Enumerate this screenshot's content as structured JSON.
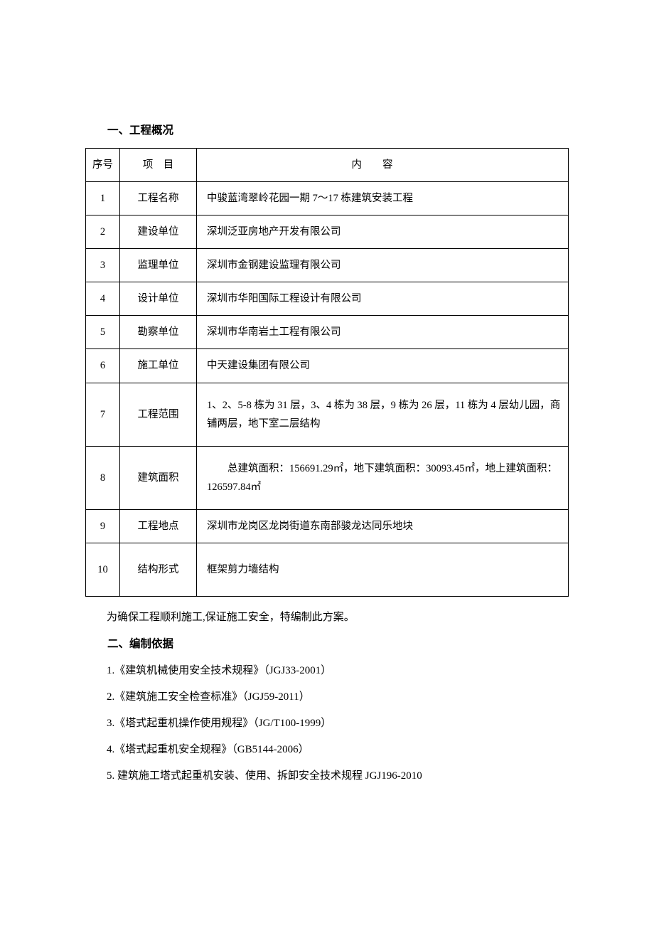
{
  "section1": {
    "title": "一、工程概况"
  },
  "table": {
    "headers": {
      "seq": "序号",
      "item": "项　目",
      "content": "内容"
    },
    "rows": [
      {
        "seq": "1",
        "item": "工程名称",
        "content": "中骏蓝湾翠岭花园一期 7～17 栋建筑安装工程"
      },
      {
        "seq": "2",
        "item": "建设单位",
        "content": "深圳泛亚房地产开发有限公司"
      },
      {
        "seq": "3",
        "item": "监理单位",
        "content": "深圳市金钢建设监理有限公司"
      },
      {
        "seq": "4",
        "item": "设计单位",
        "content": "深圳市华阳国际工程设计有限公司"
      },
      {
        "seq": "5",
        "item": "勘察单位",
        "content": "深圳市华南岩土工程有限公司"
      },
      {
        "seq": "6",
        "item": "施工单位",
        "content": "中天建设集团有限公司"
      },
      {
        "seq": "7",
        "item": "工程范围",
        "content": "1、2、5-8 栋为 31 层，3、4 栋为 38 层，9 栋为 26 层，11 栋为 4 层幼儿园，商铺两层，地下室二层结构"
      },
      {
        "seq": "8",
        "item": "建筑面积",
        "content": "总建筑面积：156691.29㎡，地下建筑面积：30093.45㎡，地上建筑面积：126597.84㎡"
      },
      {
        "seq": "9",
        "item": "工程地点",
        "content": "深圳市龙岗区龙岗街道东南部骏龙达同乐地块"
      },
      {
        "seq": "10",
        "item": "结构形式",
        "content": "框架剪力墙结构"
      }
    ]
  },
  "body": {
    "text1": "为确保工程顺利施工,保证施工安全，特编制此方案。"
  },
  "section2": {
    "title": "二、编制依据",
    "items": [
      "1.《建筑机械使用安全技术规程》（JGJ33-2001）",
      "2.《建筑施工安全检查标准》（JGJ59-2011）",
      "3.《塔式起重机操作使用规程》（JG/T100-1999）",
      "4.《塔式起重机安全规程》（GB5144-2006）",
      "5. 建筑施工塔式起重机安装、使用、拆卸安全技术规程 JGJ196-2010"
    ]
  }
}
